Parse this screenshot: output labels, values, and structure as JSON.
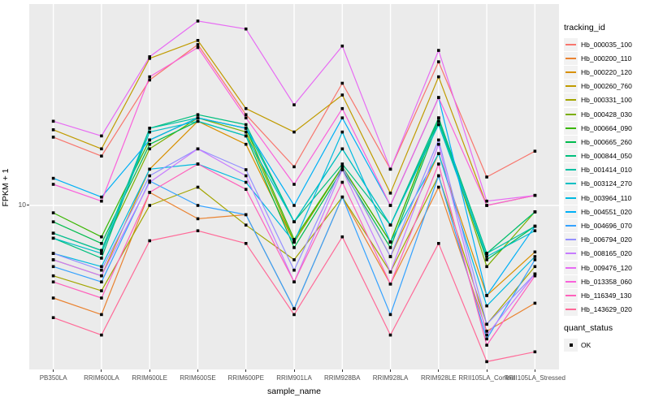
{
  "chart_data": {
    "type": "line",
    "xlabel": "sample_name",
    "ylabel": "FPKM + 1",
    "y_scale": "log10",
    "y_tick_labels": [
      "10"
    ],
    "ylim": [
      1.5,
      100
    ],
    "grid": "major-white-on-grey",
    "legend_position": "right",
    "legend_title": "tracking_id",
    "legend2_title": "quant_status",
    "quant_status_values": [
      "OK"
    ],
    "categories": [
      "PB350LA",
      "RRIM600LA",
      "RRIM600LE",
      "RRIM600SE",
      "RRIM600PE",
      "RRIM901LA",
      "RRIM928BA",
      "RRIM928LA",
      "RRIM928LE",
      "RRII105LA_Control",
      "RRII105LA_Stressed"
    ],
    "series": [
      {
        "name": "Hb_000035_100",
        "color": "#F8766D",
        "values": [
          21.7,
          17.5,
          41.5,
          62,
          28,
          15.5,
          40,
          15.1,
          51,
          13.8,
          18.5
        ]
      },
      {
        "name": "Hb_000200_110",
        "color": "#EA8331",
        "values": [
          3.5,
          2.9,
          11.6,
          8.6,
          9,
          3.1,
          11,
          4.1,
          12.3,
          2.4,
          3.3
        ]
      },
      {
        "name": "Hb_000220_120",
        "color": "#D89000",
        "values": [
          5.4,
          4.5,
          15.1,
          26,
          20,
          6.6,
          15.5,
          5.6,
          18,
          3.6,
          5.9
        ]
      },
      {
        "name": "Hb_000260_760",
        "color": "#C09B00",
        "values": [
          23.6,
          19,
          53,
          65,
          30,
          23,
          35,
          11.5,
          43,
          10,
          11.2
        ]
      },
      {
        "name": "Hb_000331_100",
        "color": "#A3A500",
        "values": [
          4.5,
          3.8,
          10,
          12.3,
          8,
          5.4,
          11,
          4.7,
          14,
          2.6,
          5.0
        ]
      },
      {
        "name": "Hb_000428_030",
        "color": "#7CAE00",
        "values": [
          7.3,
          6.0,
          19,
          27,
          23,
          6.6,
          15.5,
          6.6,
          27,
          5.0,
          9.3
        ]
      },
      {
        "name": "Hb_000664_090",
        "color": "#39B600",
        "values": [
          9.2,
          7.0,
          21,
          27,
          24,
          6.8,
          15.5,
          6.6,
          27,
          5.8,
          9.3
        ]
      },
      {
        "name": "Hb_000665_260",
        "color": "#00BB4E",
        "values": [
          8.3,
          6.5,
          20,
          26,
          22,
          6.2,
          15,
          6.2,
          26,
          5.4,
          7.9
        ]
      },
      {
        "name": "Hb_000844_050",
        "color": "#00BF7D",
        "values": [
          6.9,
          5.5,
          24,
          28,
          25,
          8.3,
          16,
          8.0,
          27,
          5.8,
          9.3
        ]
      },
      {
        "name": "Hb_001414_010",
        "color": "#00C1A3",
        "values": [
          7.3,
          6.0,
          24,
          27,
          24,
          8.3,
          19,
          8.0,
          26,
          5.8,
          7.9
        ]
      },
      {
        "name": "Hb_003124_270",
        "color": "#00BFC4",
        "values": [
          6.9,
          5.8,
          23,
          26,
          22,
          8.3,
          19,
          8.0,
          25,
          5.6,
          7.5
        ]
      },
      {
        "name": "Hb_003964_110",
        "color": "#00BAE0",
        "values": [
          5.8,
          5.0,
          15.1,
          16,
          13,
          6.6,
          23,
          6.6,
          18,
          3.2,
          5.6
        ]
      },
      {
        "name": "Hb_004551_020",
        "color": "#00B0F6",
        "values": [
          13.6,
          11,
          21,
          27,
          24,
          10,
          27,
          10,
          34,
          3.6,
          7.9
        ]
      },
      {
        "name": "Hb_004696_070",
        "color": "#35A2FF",
        "values": [
          5.0,
          4.2,
          13.2,
          10,
          9,
          3.1,
          11,
          2.9,
          14,
          2.2,
          5.4
        ]
      },
      {
        "name": "Hb_006794_020",
        "color": "#9590FF",
        "values": [
          5.8,
          4.8,
          14,
          19,
          15,
          4.8,
          15.5,
          5.6,
          21,
          2.6,
          4.6
        ]
      },
      {
        "name": "Hb_008165_020",
        "color": "#C77CFF",
        "values": [
          5.4,
          4.5,
          13,
          19,
          14,
          4.2,
          15,
          4.7,
          20,
          2.3,
          4.6
        ]
      },
      {
        "name": "Hb_009476_120",
        "color": "#E76BF3",
        "values": [
          26,
          22,
          54,
          81,
          74,
          31.3,
          61,
          15.1,
          58,
          10.5,
          11.2
        ]
      },
      {
        "name": "Hb_013358_060",
        "color": "#FA62DB",
        "values": [
          12.7,
          10.5,
          43,
          60,
          27,
          12.7,
          30,
          10,
          34,
          10,
          11.2
        ]
      },
      {
        "name": "Hb_116349_130",
        "color": "#FF62BC",
        "values": [
          4.2,
          3.5,
          11.6,
          16,
          12,
          4.2,
          13,
          4.1,
          16,
          2.05,
          4.5
        ]
      },
      {
        "name": "Hb_143629_020",
        "color": "#FF6A98",
        "values": [
          2.8,
          2.3,
          6.7,
          7.5,
          6.5,
          2.9,
          7,
          2.3,
          6.5,
          1.7,
          1.9
        ]
      }
    ],
    "theme": {
      "panel_bg": "#EBEBEB",
      "grid_color": "#FFFFFF",
      "point_color": "#000000",
      "axis_text_color": "#4D4D4D"
    }
  }
}
